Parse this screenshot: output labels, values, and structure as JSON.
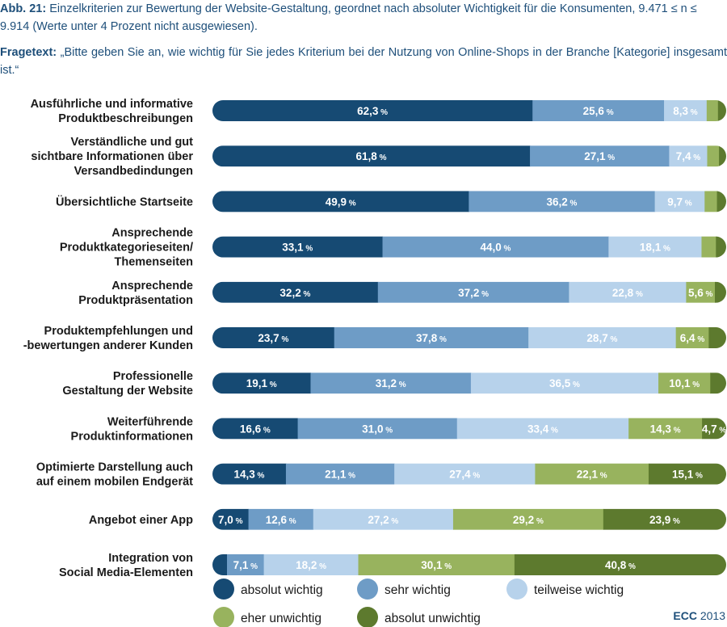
{
  "caption": {
    "prefix": "Abb. 21:",
    "text": "Einzelkriterien zur Bewertung der Website-Gestaltung, geordnet nach absoluter Wichtigkeit für die Konsumenten, 9.471 ≤ n ≤ 9.914 (Werte unter 4 Prozent nicht ausgewiesen).",
    "question_prefix": "Fragetext:",
    "question_text": "„Bitte geben Sie an, wie wichtig für Sie jedes Kriterium bei der Nutzung von Online-Shops in der Branche [Kategorie] insgesamt ist.“"
  },
  "source": {
    "brand": "ECC",
    "year": "2013"
  },
  "colors": {
    "absolut wichtig": "#164a73",
    "sehr wichtig": "#6e9cc6",
    "teilweise wichtig": "#b7d2eb",
    "eher unwichtig": "#98b35e",
    "absolut unwichtig": "#5d7a2e"
  },
  "chart_data": {
    "type": "bar",
    "orientation": "horizontal",
    "stacked": true,
    "unit": "%",
    "label_threshold": 4,
    "xlim": [
      0,
      100
    ],
    "legend_position": "bottom",
    "categories": [
      [
        "Ausführliche und informative",
        "Produktbeschreibungen"
      ],
      [
        "Verständliche und gut",
        "sichtbare Informationen über",
        "Versandbedindungen"
      ],
      [
        "Übersichtliche Startseite"
      ],
      [
        "Ansprechende",
        "Produktkategorieseiten/",
        "Themenseiten"
      ],
      [
        "Ansprechende",
        "Produktpräsentation"
      ],
      [
        "Produktempfehlungen und",
        "-bewertungen anderer Kunden"
      ],
      [
        "Professionelle",
        "Gestaltung der Website"
      ],
      [
        "Weiterführende",
        "Produktinformationen"
      ],
      [
        "Optimierte Darstellung auch",
        "auf einem mobilen Endgerät"
      ],
      [
        "Angebot einer App"
      ],
      [
        "Integration von",
        "Social Media-Elementen"
      ]
    ],
    "series": [
      {
        "name": "absolut wichtig",
        "values": [
          62.3,
          61.8,
          49.9,
          33.1,
          32.2,
          23.7,
          19.1,
          16.6,
          14.3,
          7.0,
          2.8
        ]
      },
      {
        "name": "sehr wichtig",
        "values": [
          25.6,
          27.1,
          36.2,
          44.0,
          37.2,
          37.8,
          31.2,
          31.0,
          21.1,
          12.6,
          7.1
        ]
      },
      {
        "name": "teilweise wichtig",
        "values": [
          8.3,
          7.4,
          9.7,
          18.1,
          22.8,
          28.7,
          36.5,
          33.4,
          27.4,
          27.2,
          18.2
        ]
      },
      {
        "name": "eher unwichtig",
        "values": [
          2.2,
          2.3,
          2.4,
          2.8,
          5.6,
          6.4,
          10.1,
          14.3,
          22.1,
          29.2,
          30.1
        ]
      },
      {
        "name": "absolut unwichtig",
        "values": [
          1.6,
          1.4,
          1.8,
          2.0,
          2.2,
          3.4,
          3.1,
          4.7,
          15.1,
          23.9,
          40.8
        ]
      }
    ]
  }
}
